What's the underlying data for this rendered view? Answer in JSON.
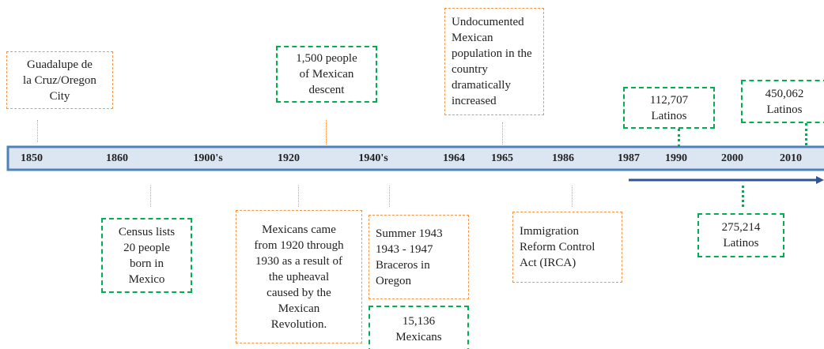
{
  "timeline": {
    "years": [
      "1850",
      "1860",
      "1900's",
      "1920",
      "1940's",
      "1964",
      "1965",
      "1986",
      "1987",
      "1990",
      "2000",
      "2010"
    ]
  },
  "events": [
    {
      "lines": [
        "Guadalupe de",
        "la Cruz/Oregon",
        "City"
      ]
    },
    {
      "lines": [
        "1,500 people",
        "of Mexican",
        "descent"
      ]
    },
    {
      "lines": [
        "Undocumented",
        "Mexican",
        "population in the",
        "country",
        "dramatically",
        "increased"
      ]
    },
    {
      "lines": [
        "112,707",
        "Latinos"
      ]
    },
    {
      "lines": [
        "450,062",
        "Latinos"
      ]
    },
    {
      "lines": [
        "Census lists",
        "20 people",
        "born in",
        "Mexico"
      ]
    },
    {
      "lines": [
        "Mexicans came",
        "from 1920 through",
        "1930 as a result of",
        "the upheaval",
        "caused by the",
        "Mexican",
        "Revolution."
      ]
    },
    {
      "lines": [
        "Summer 1943",
        "1943 - 1947",
        "Braceros in",
        "Oregon"
      ]
    },
    {
      "lines": [
        "15,136",
        "Mexicans"
      ]
    },
    {
      "lines": [
        "Immigration",
        "Reform Control",
        "Act (IRCA)"
      ]
    },
    {
      "lines": [
        "275,214",
        "Latinos"
      ]
    }
  ]
}
